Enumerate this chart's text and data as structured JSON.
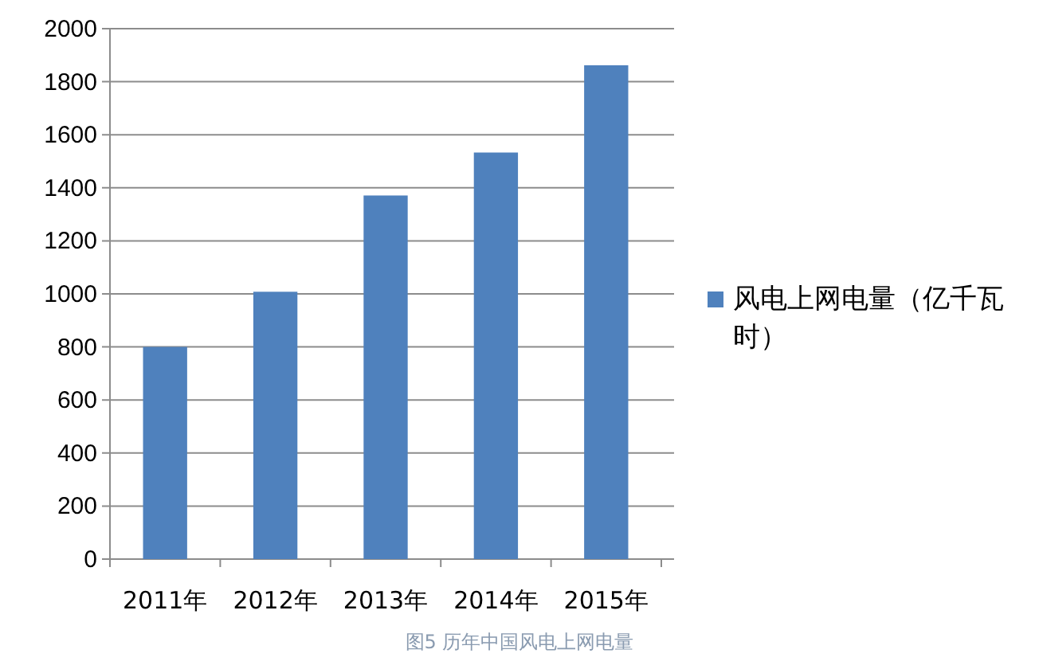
{
  "chart_data": {
    "type": "bar",
    "categories": [
      "2011年",
      "2012年",
      "2013年",
      "2014年",
      "2015年"
    ],
    "series": [
      {
        "name": "风电上网电量（亿千瓦时）",
        "color": "#4f81bd",
        "values": [
          800,
          1008,
          1371,
          1533,
          1862
        ]
      }
    ],
    "ylim": [
      0,
      2000
    ],
    "yticks": [
      0,
      200,
      400,
      600,
      800,
      1000,
      1200,
      1400,
      1600,
      1800,
      2000
    ],
    "grid": "y",
    "legend": "right",
    "annotations": [
      "图5 历年中国风电上网电量"
    ]
  }
}
